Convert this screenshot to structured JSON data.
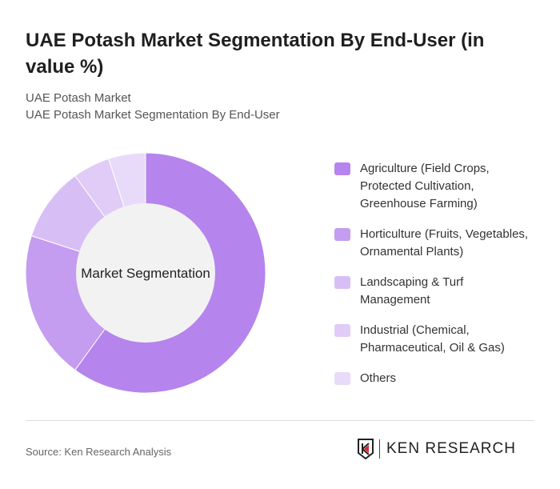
{
  "title": "UAE Potash Market Segmentation By End-User (in value %)",
  "subtitle1": "UAE Potash Market",
  "subtitle2": "UAE Potash Market Segmentation By End-User",
  "chart_data": {
    "type": "pie",
    "donut": true,
    "center_label": "Market Segmentation",
    "categories": [
      "Agriculture (Field Crops, Protected Cultivation, Greenhouse Farming)",
      "Horticulture (Fruits, Vegetables, Ornamental Plants)",
      "Landscaping & Turf Management",
      "Industrial (Chemical, Pharmaceutical, Oil & Gas)",
      "Others"
    ],
    "values": [
      60,
      20,
      10,
      5,
      5
    ],
    "colors": [
      "#b584ec",
      "#c49cf0",
      "#d7bff5",
      "#e0ccf7",
      "#e8dbf9"
    ],
    "legend_position": "right"
  },
  "source": "Source: Ken Research Analysis",
  "logo_text": "KEN RESEARCH"
}
